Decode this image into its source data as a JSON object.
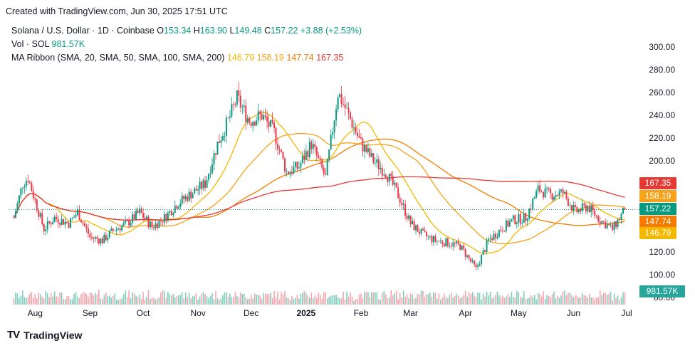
{
  "header": {
    "created": "Created with TradingView.com, Jun 30, 2025 17:51 UTC"
  },
  "legend": {
    "symbol": "Solana / U.S. Dollar · 1D · Coinbase",
    "o_label": "O",
    "o": "153.34",
    "h_label": "H",
    "h": "163.90",
    "l_label": "L",
    "l": "149.48",
    "c_label": "C",
    "c": "157.22",
    "change": "+3.88 (+2.53%)",
    "vol_label": "Vol · SOL",
    "vol": "981.57K",
    "ma_label": "MA Ribbon (SMA, 20, SMA, 50, SMA, 100, SMA, 200)",
    "ma20": "146.79",
    "ma50": "158.19",
    "ma100": "147.74",
    "ma200": "167.35"
  },
  "brand": {
    "name": "TradingView",
    "logo": "TV"
  },
  "colors": {
    "up": "#089981",
    "down": "#f23645",
    "ma20": "#f5b800",
    "ma50": "#f7a21b",
    "ma100": "#f57c00",
    "ma200": "#e53935",
    "vol_up": "#7fcdbd",
    "vol_down": "#f4a5ad"
  },
  "chart_data": {
    "type": "candlestick",
    "y_ticks": [
      "300.00",
      "280.00",
      "260.00",
      "240.00",
      "220.00",
      "200.00",
      "180.00",
      "160.00",
      "140.00",
      "120.00",
      "100.00",
      "80.00"
    ],
    "ylim": [
      80,
      305
    ],
    "x_labels": [
      "Aug",
      "Sep",
      "Oct",
      "Nov",
      "Dec",
      "2025",
      "Feb",
      "Mar",
      "Apr",
      "May",
      "Jun",
      "Jul"
    ],
    "price_badges": [
      {
        "value": "167.35",
        "color": "#e53935"
      },
      {
        "value": "158.19",
        "color": "#f7a21b"
      },
      {
        "value": "157.22",
        "color": "#089981"
      },
      {
        "value": "147.74",
        "color": "#f57c00"
      },
      {
        "value": "146.79",
        "color": "#f5b800"
      }
    ],
    "volume_badge": {
      "value": "981.57K",
      "color": "#26a69a"
    },
    "last_close": 157.22,
    "closes": [
      {
        "date": "2024-07-20",
        "close": 150
      },
      {
        "date": "2024-07-25",
        "close": 180
      },
      {
        "date": "2024-07-28",
        "close": 185
      },
      {
        "date": "2024-08-03",
        "close": 155
      },
      {
        "date": "2024-08-06",
        "close": 140
      },
      {
        "date": "2024-08-12",
        "close": 150
      },
      {
        "date": "2024-08-20",
        "close": 145
      },
      {
        "date": "2024-08-25",
        "close": 155
      },
      {
        "date": "2024-09-01",
        "close": 133
      },
      {
        "date": "2024-09-08",
        "close": 130
      },
      {
        "date": "2024-09-15",
        "close": 140
      },
      {
        "date": "2024-09-22",
        "close": 145
      },
      {
        "date": "2024-09-29",
        "close": 155
      },
      {
        "date": "2024-10-06",
        "close": 142
      },
      {
        "date": "2024-10-13",
        "close": 150
      },
      {
        "date": "2024-10-20",
        "close": 162
      },
      {
        "date": "2024-10-27",
        "close": 170
      },
      {
        "date": "2024-11-05",
        "close": 180
      },
      {
        "date": "2024-11-12",
        "close": 215
      },
      {
        "date": "2024-11-18",
        "close": 235
      },
      {
        "date": "2024-11-23",
        "close": 255
      },
      {
        "date": "2024-11-30",
        "close": 235
      },
      {
        "date": "2024-12-07",
        "close": 240
      },
      {
        "date": "2024-12-14",
        "close": 225
      },
      {
        "date": "2024-12-21",
        "close": 190
      },
      {
        "date": "2024-12-28",
        "close": 195
      },
      {
        "date": "2025-01-04",
        "close": 215
      },
      {
        "date": "2025-01-12",
        "close": 185
      },
      {
        "date": "2025-01-19",
        "close": 260
      },
      {
        "date": "2025-01-25",
        "close": 240
      },
      {
        "date": "2025-02-01",
        "close": 215
      },
      {
        "date": "2025-02-08",
        "close": 200
      },
      {
        "date": "2025-02-15",
        "close": 190
      },
      {
        "date": "2025-02-22",
        "close": 170
      },
      {
        "date": "2025-03-01",
        "close": 145
      },
      {
        "date": "2025-03-08",
        "close": 135
      },
      {
        "date": "2025-03-15",
        "close": 130
      },
      {
        "date": "2025-03-22",
        "close": 128
      },
      {
        "date": "2025-03-29",
        "close": 125
      },
      {
        "date": "2025-04-07",
        "close": 105
      },
      {
        "date": "2025-04-14",
        "close": 130
      },
      {
        "date": "2025-04-21",
        "close": 140
      },
      {
        "date": "2025-04-28",
        "close": 148
      },
      {
        "date": "2025-05-05",
        "close": 150
      },
      {
        "date": "2025-05-12",
        "close": 175
      },
      {
        "date": "2025-05-19",
        "close": 170
      },
      {
        "date": "2025-05-26",
        "close": 172
      },
      {
        "date": "2025-06-02",
        "close": 155
      },
      {
        "date": "2025-06-09",
        "close": 160
      },
      {
        "date": "2025-06-16",
        "close": 148
      },
      {
        "date": "2025-06-23",
        "close": 140
      },
      {
        "date": "2025-06-30",
        "close": 157.22
      }
    ]
  }
}
